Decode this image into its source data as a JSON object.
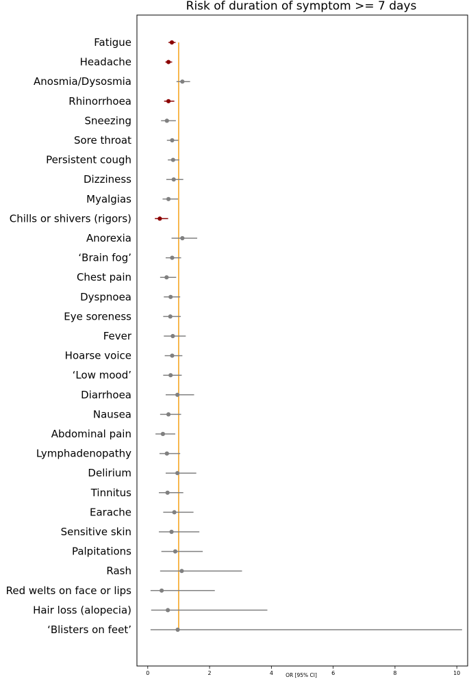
{
  "chart_data": {
    "type": "scatter",
    "title": "Risk of duration of symptom >= 7 days",
    "xlabel": "OR [95% CI]",
    "ylabel": "",
    "xlim": [
      -0.35,
      10.35
    ],
    "xticks": [
      "0",
      "2",
      "4",
      "6",
      "8",
      "10"
    ],
    "xtick_values": [
      0,
      2,
      4,
      6,
      8,
      10
    ],
    "reference_line": 1.0,
    "grid": false,
    "colors": {
      "significant": "#8b0000",
      "non_significant": "#808080",
      "reference": "#f5a623",
      "axis": "#000000"
    },
    "points": [
      {
        "label": "Fatigue",
        "or": 0.78,
        "lo": 0.67,
        "hi": 0.9,
        "significant": true
      },
      {
        "label": "Headache",
        "or": 0.67,
        "lo": 0.57,
        "hi": 0.79,
        "significant": true
      },
      {
        "label": "Anosmia/Dysosmia",
        "or": 1.12,
        "lo": 0.93,
        "hi": 1.37,
        "significant": false
      },
      {
        "label": "Rhinorrhoea",
        "or": 0.67,
        "lo": 0.53,
        "hi": 0.86,
        "significant": true
      },
      {
        "label": "Sneezing",
        "or": 0.62,
        "lo": 0.43,
        "hi": 0.91,
        "significant": false
      },
      {
        "label": "Sore throat",
        "or": 0.79,
        "lo": 0.62,
        "hi": 0.99,
        "significant": false
      },
      {
        "label": "Persistent cough",
        "or": 0.82,
        "lo": 0.65,
        "hi": 1.02,
        "significant": false
      },
      {
        "label": "Dizziness",
        "or": 0.84,
        "lo": 0.6,
        "hi": 1.15,
        "significant": false
      },
      {
        "label": "Myalgias",
        "or": 0.67,
        "lo": 0.48,
        "hi": 0.98,
        "significant": false
      },
      {
        "label": "Chills or shivers (rigors)",
        "or": 0.39,
        "lo": 0.23,
        "hi": 0.66,
        "significant": true
      },
      {
        "label": "Anorexia",
        "or": 1.12,
        "lo": 0.77,
        "hi": 1.6,
        "significant": false
      },
      {
        "label": "‘Brain fog’",
        "or": 0.79,
        "lo": 0.58,
        "hi": 1.08,
        "significant": false
      },
      {
        "label": "Chest pain",
        "or": 0.61,
        "lo": 0.4,
        "hi": 0.92,
        "significant": false
      },
      {
        "label": "Dyspnoea",
        "or": 0.74,
        "lo": 0.52,
        "hi": 1.05,
        "significant": false
      },
      {
        "label": "Eye soreness",
        "or": 0.73,
        "lo": 0.5,
        "hi": 1.07,
        "significant": false
      },
      {
        "label": "Fever",
        "or": 0.81,
        "lo": 0.52,
        "hi": 1.23,
        "significant": false
      },
      {
        "label": "Hoarse voice",
        "or": 0.79,
        "lo": 0.55,
        "hi": 1.12,
        "significant": false
      },
      {
        "label": "‘Low mood’",
        "or": 0.74,
        "lo": 0.5,
        "hi": 1.1,
        "significant": false
      },
      {
        "label": "Diarrhoea",
        "or": 0.96,
        "lo": 0.58,
        "hi": 1.5,
        "significant": false
      },
      {
        "label": "Nausea",
        "or": 0.67,
        "lo": 0.4,
        "hi": 1.08,
        "significant": false
      },
      {
        "label": "Abdominal pain",
        "or": 0.49,
        "lo": 0.25,
        "hi": 0.89,
        "significant": false
      },
      {
        "label": "Lymphadenopathy",
        "or": 0.62,
        "lo": 0.38,
        "hi": 1.05,
        "significant": false
      },
      {
        "label": "Delirium",
        "or": 0.96,
        "lo": 0.58,
        "hi": 1.57,
        "significant": false
      },
      {
        "label": "Tinnitus",
        "or": 0.64,
        "lo": 0.36,
        "hi": 1.15,
        "significant": false
      },
      {
        "label": "Earache",
        "or": 0.86,
        "lo": 0.5,
        "hi": 1.48,
        "significant": false
      },
      {
        "label": "Sensitive skin",
        "or": 0.77,
        "lo": 0.36,
        "hi": 1.67,
        "significant": false
      },
      {
        "label": "Palpitations",
        "or": 0.89,
        "lo": 0.44,
        "hi": 1.78,
        "significant": false
      },
      {
        "label": "Rash",
        "or": 1.1,
        "lo": 0.4,
        "hi": 3.05,
        "significant": false
      },
      {
        "label": "Red welts on face or lips",
        "or": 0.45,
        "lo": 0.09,
        "hi": 2.17,
        "significant": false
      },
      {
        "label": "Hair loss (alopecia)",
        "or": 0.65,
        "lo": 0.11,
        "hi": 3.87,
        "significant": false
      },
      {
        "label": "‘Blisters on feet’",
        "or": 0.97,
        "lo": 0.09,
        "hi": 10.17,
        "significant": false
      }
    ]
  }
}
